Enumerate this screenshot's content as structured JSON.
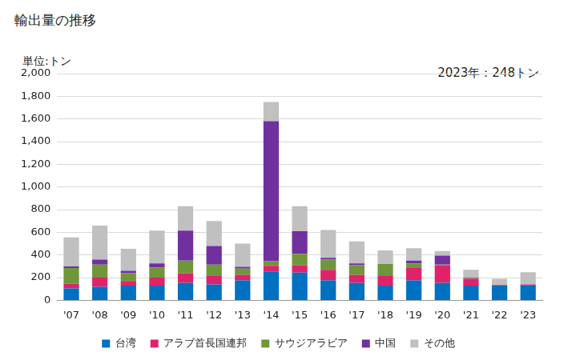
{
  "chart_data": {
    "type": "bar",
    "title": "輸出量の推移",
    "y_label": "単位:トン",
    "annotation": "2023年：248トン",
    "categories": [
      "'07",
      "'08",
      "'09",
      "'10",
      "'11",
      "'12",
      "'13",
      "'14",
      "'15",
      "'16",
      "'17",
      "'18",
      "'19",
      "'20",
      "'21",
      "'22",
      "'23"
    ],
    "series": [
      {
        "name": "台湾",
        "color": "#0070c0",
        "values": [
          105,
          120,
          130,
          130,
          155,
          140,
          175,
          255,
          245,
          175,
          155,
          130,
          175,
          155,
          130,
          130,
          135
        ]
      },
      {
        "name": "アラブ首長国連邦",
        "color": "#e0226a",
        "values": [
          40,
          80,
          40,
          70,
          85,
          80,
          50,
          50,
          65,
          95,
          70,
          85,
          115,
          155,
          60,
          5,
          5
        ]
      },
      {
        "name": "サウジアラビア",
        "color": "#70963a",
        "values": [
          140,
          115,
          70,
          90,
          110,
          95,
          55,
          40,
          100,
          90,
          85,
          105,
          35,
          5,
          5,
          0,
          0
        ]
      },
      {
        "name": "中国",
        "color": "#7030a0",
        "values": [
          15,
          45,
          20,
          35,
          265,
          165,
          15,
          1235,
          200,
          15,
          15,
          0,
          25,
          80,
          5,
          0,
          0
        ]
      },
      {
        "name": "その他",
        "color": "#c0c0c0",
        "values": [
          255,
          300,
          195,
          290,
          215,
          220,
          205,
          170,
          220,
          245,
          195,
          120,
          110,
          40,
          70,
          55,
          108
        ]
      }
    ],
    "ylim": [
      0,
      2000
    ],
    "yticks": [
      0,
      200,
      400,
      600,
      800,
      {
        "value": 1000,
        "label": "1,000"
      },
      {
        "value": 1200,
        "label": "1,200"
      },
      {
        "value": 1400,
        "label": "1,400"
      },
      {
        "value": 1600,
        "label": "1,600"
      },
      {
        "value": 1800,
        "label": "1,800"
      },
      {
        "value": 2000,
        "label": "2,000"
      }
    ],
    "stacked": true,
    "grid": true,
    "legend": "bottom"
  }
}
